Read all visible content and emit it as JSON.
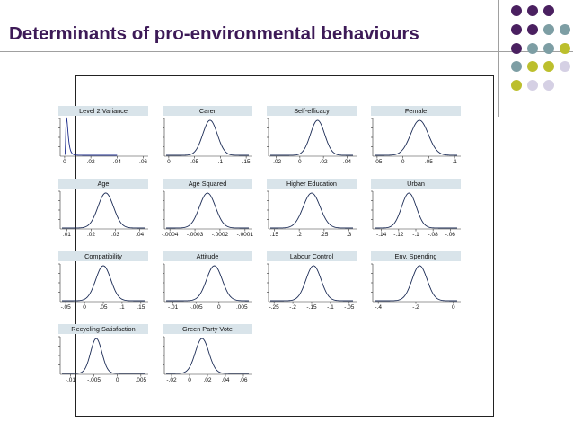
{
  "slide": {
    "title": "Determinants of pro-environmental behaviours"
  },
  "decoration": {
    "dot_colors": {
      "purple": "#4a2060",
      "teal": "#7d9ea4",
      "olive": "#bcbf2d",
      "lavender": "#d5d0e4"
    },
    "dot_grid": [
      [
        "purple",
        "purple",
        "purple"
      ],
      [
        "purple",
        "purple",
        "teal",
        "teal"
      ],
      [
        "purple",
        "teal",
        "teal",
        "olive"
      ],
      [
        "teal",
        "olive",
        "olive",
        "lavender"
      ],
      [
        "olive",
        "lavender",
        "lavender"
      ]
    ]
  },
  "chart_data": [
    {
      "type": "line",
      "title": "Level 2 Variance",
      "ticks": [
        "0",
        ".02",
        ".04",
        ".06"
      ],
      "tick_values": [
        0,
        0.02,
        0.04,
        0.06
      ],
      "xlim": [
        -0.002,
        0.061
      ],
      "dist": "skewed",
      "mode": 0.0015,
      "sd": 0.0016,
      "x_end": 0.04
    },
    {
      "type": "line",
      "title": "Carer",
      "ticks": [
        "0",
        ".05",
        ".1",
        ".15"
      ],
      "tick_values": [
        0,
        0.05,
        0.1,
        0.15
      ],
      "xlim": [
        -0.005,
        0.155
      ],
      "dist": "normal",
      "mean": 0.08,
      "sd": 0.014
    },
    {
      "type": "line",
      "title": "Self-efficacy",
      "ticks": [
        "-.02",
        "0",
        ".02",
        ".04"
      ],
      "tick_values": [
        -0.02,
        0,
        0.02,
        0.04
      ],
      "xlim": [
        -0.025,
        0.045
      ],
      "dist": "normal",
      "mean": 0.015,
      "sd": 0.006
    },
    {
      "type": "line",
      "title": "Female",
      "ticks": [
        "-.05",
        "0",
        ".05",
        ".1"
      ],
      "tick_values": [
        -0.05,
        0,
        0.05,
        0.1
      ],
      "xlim": [
        -0.055,
        0.105
      ],
      "dist": "normal",
      "mean": 0.032,
      "sd": 0.017
    },
    {
      "type": "line",
      "title": "Age",
      "ticks": [
        ".01",
        ".02",
        ".03",
        ".04"
      ],
      "tick_values": [
        0.01,
        0.02,
        0.03,
        0.04
      ],
      "xlim": [
        0.008,
        0.042
      ],
      "dist": "normal",
      "mean": 0.026,
      "sd": 0.0032
    },
    {
      "type": "line",
      "title": "Age Squared",
      "ticks": [
        "-.0004",
        "-.0003",
        "-.0002",
        "-.0001"
      ],
      "tick_values": [
        -0.0004,
        -0.0003,
        -0.0002,
        -0.0001
      ],
      "xlim": [
        -0.000415,
        -8.5e-05
      ],
      "dist": "normal",
      "mean": -0.00025,
      "sd": 3.2e-05
    },
    {
      "type": "line",
      "title": "Higher Education",
      "ticks": [
        ".15",
        ".2",
        ".25",
        ".3"
      ],
      "tick_values": [
        0.15,
        0.2,
        0.25,
        0.3
      ],
      "xlim": [
        0.142,
        0.308
      ],
      "dist": "normal",
      "mean": 0.225,
      "sd": 0.017
    },
    {
      "type": "line",
      "title": "Urban",
      "ticks": [
        "-.14",
        "-.12",
        "-.1",
        "-.08",
        "-.06"
      ],
      "tick_values": [
        -0.14,
        -0.12,
        -0.1,
        -0.08,
        -0.06
      ],
      "xlim": [
        -0.148,
        -0.052
      ],
      "dist": "normal",
      "mean": -0.108,
      "sd": 0.0085
    },
    {
      "type": "line",
      "title": "Compatibility",
      "ticks": [
        "-.05",
        "0",
        ".05",
        ".1",
        ".15"
      ],
      "tick_values": [
        -0.05,
        0,
        0.05,
        0.1,
        0.15
      ],
      "xlim": [
        -0.06,
        0.16
      ],
      "dist": "normal",
      "mean": 0.05,
      "sd": 0.02
    },
    {
      "type": "line",
      "title": "Attitude",
      "ticks": [
        "-.01",
        "-.005",
        "0",
        ".005"
      ],
      "tick_values": [
        -0.01,
        -0.005,
        0,
        0.005
      ],
      "xlim": [
        -0.0115,
        0.0065
      ],
      "dist": "normal",
      "mean": -0.001,
      "sd": 0.0017
    },
    {
      "type": "line",
      "title": "Labour Control",
      "ticks": [
        "-.25",
        "-.2",
        "-.15",
        "-.1",
        "-.05"
      ],
      "tick_values": [
        -0.25,
        -0.2,
        -0.15,
        -0.1,
        -0.05
      ],
      "xlim": [
        -0.26,
        -0.04
      ],
      "dist": "normal",
      "mean": -0.145,
      "sd": 0.02
    },
    {
      "type": "line",
      "title": "Env. Spending",
      "ticks": [
        "-.4",
        "-.2",
        "0"
      ],
      "tick_values": [
        -0.4,
        -0.2,
        0
      ],
      "xlim": [
        -0.42,
        0.02
      ],
      "dist": "normal",
      "mean": -0.18,
      "sd": 0.04
    },
    {
      "type": "line",
      "title": "Recycling Satisfaction",
      "ticks": [
        "-.01",
        "-.005",
        "0",
        ".005"
      ],
      "tick_values": [
        -0.01,
        -0.005,
        0,
        0.005
      ],
      "xlim": [
        -0.0118,
        0.0058
      ],
      "dist": "normal",
      "mean": -0.0045,
      "sd": 0.0012
    },
    {
      "type": "line",
      "title": "Green Party Vote",
      "ticks": [
        "-.02",
        "0",
        ".02",
        ".04",
        ".06"
      ],
      "tick_values": [
        -0.02,
        0,
        0.02,
        0.04,
        0.06
      ],
      "xlim": [
        -0.026,
        0.066
      ],
      "dist": "normal",
      "mean": 0.014,
      "sd": 0.0075
    }
  ]
}
